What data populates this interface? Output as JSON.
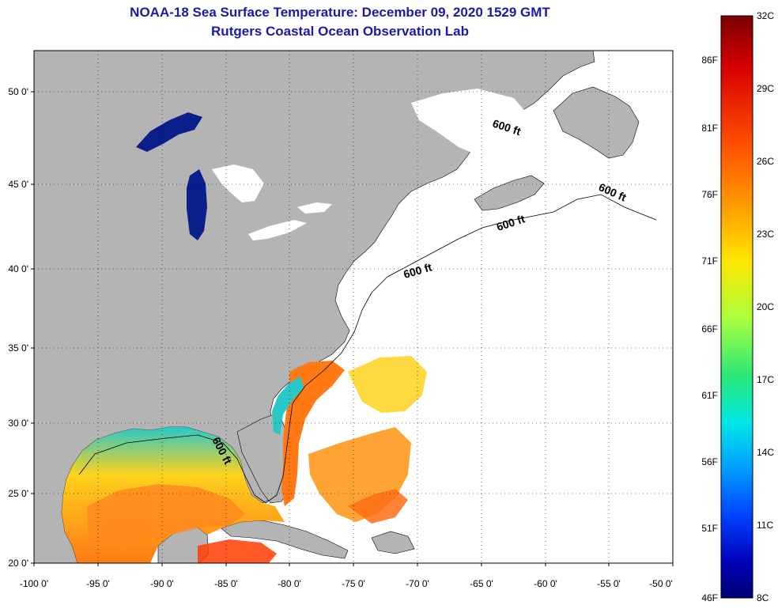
{
  "header": {
    "title": "NOAA-18 Sea Surface Temperature:  December 09, 2020 1529 GMT",
    "subtitle": "Rutgers Coastal Ocean Observation Lab"
  },
  "map": {
    "lat_ticks": [
      "50 0'",
      "45 0'",
      "40 0'",
      "35 0'",
      "30 0'",
      "25 0'",
      "20 0'"
    ],
    "lon_ticks": [
      "-100 0'",
      "-95 0'",
      "-90 0'",
      "-85 0'",
      "-80 0'",
      "-75 0'",
      "-70 0'",
      "-65 0'",
      "-60 0'",
      "-55 0'",
      "-50 0'"
    ],
    "contour_labels": [
      "600 ft",
      "600 ft",
      "600 ft",
      "600 ft",
      "600 ft"
    ],
    "colors": {
      "land": "#b4b4b4",
      "lake": "#0a1e8c",
      "cloud": "#ffffff"
    }
  },
  "colorbar": {
    "celsius": [
      "32C",
      "29C",
      "26C",
      "23C",
      "20C",
      "17C",
      "14C",
      "11C",
      "8C"
    ],
    "fahrenheit": [
      "86F",
      "81F",
      "76F",
      "71F",
      "66F",
      "61F",
      "56F",
      "51F",
      "46F"
    ],
    "stops": [
      "#7a0000",
      "#d80000",
      "#ff5000",
      "#ff9600",
      "#ffe600",
      "#aaff3c",
      "#28e678",
      "#00e6e6",
      "#009bff",
      "#0040ff",
      "#0000b4",
      "#000078"
    ]
  }
}
